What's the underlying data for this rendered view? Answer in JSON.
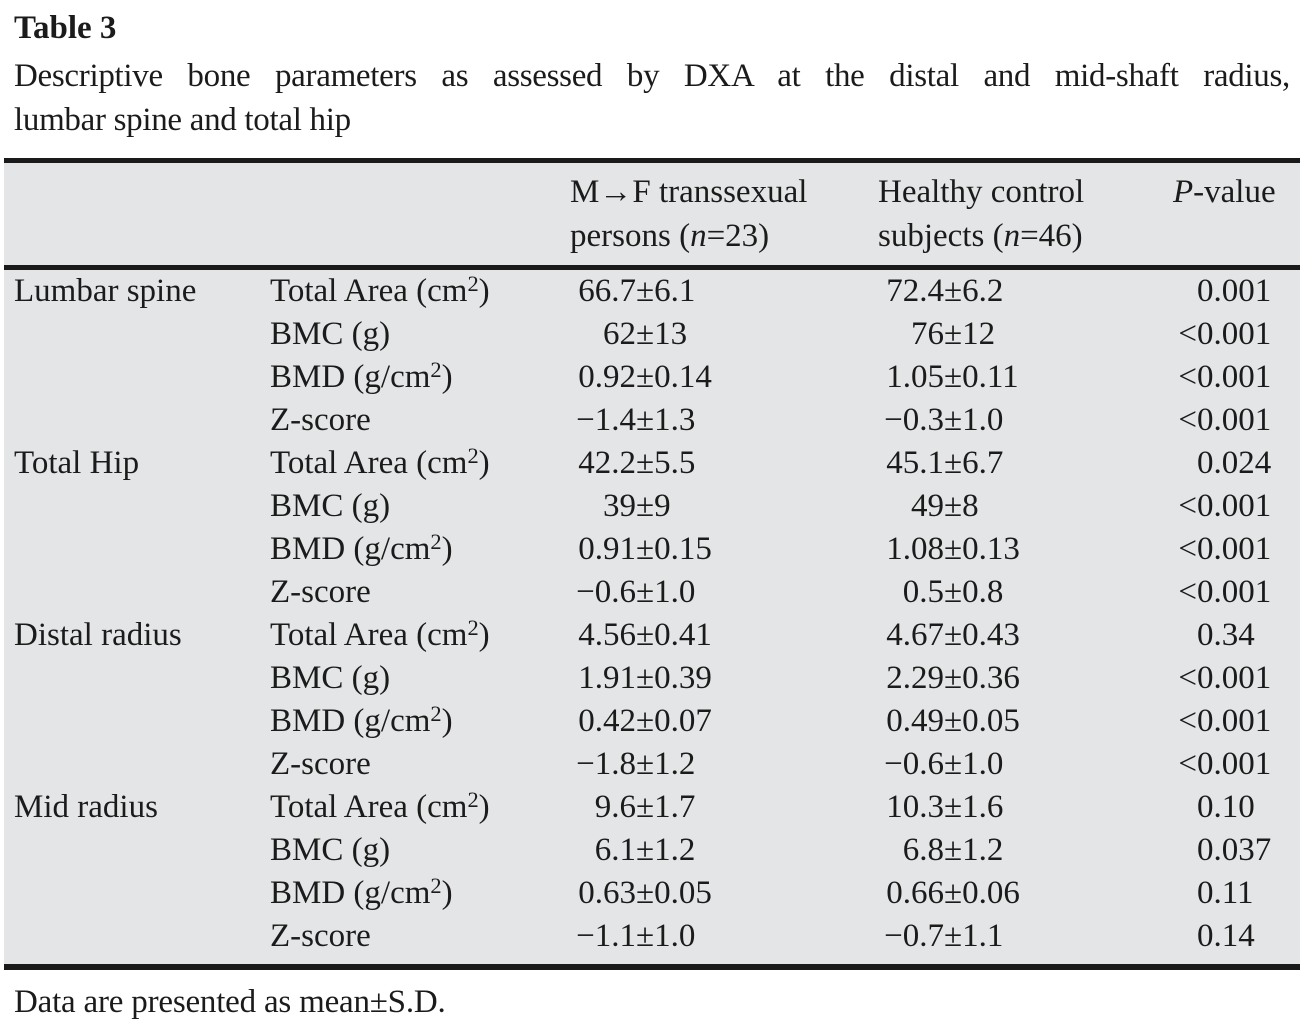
{
  "page": {
    "title": "Table 3",
    "caption_line1": "Descriptive bone parameters as assessed by DXA at the distal and mid-shaft radius,",
    "caption_line2": "lumbar spine and total hip",
    "footnote": "Data are presented as mean±S.D."
  },
  "header": {
    "mf_line1": "M→F transsexual",
    "mf_line2_pre": "persons (",
    "mf_line2_n": "n",
    "mf_line2_post": "=23)",
    "hc_line1": "Healthy control",
    "hc_line2_pre": "subjects (",
    "hc_line2_n": "n",
    "hc_line2_post": "=46)",
    "p_italic": "P",
    "p_rest": "-value"
  },
  "colors": {
    "table_bg": "#e4e5e6",
    "rule": "#1a1a1a",
    "text": "#1b1b1b"
  },
  "rows": [
    {
      "group": "Lumbar spine",
      "param": "Total Area (cm",
      "sup": "2",
      "close": ")",
      "mf": "66.7±6.1",
      "hc": "72.4±6.2",
      "p": "0.001"
    },
    {
      "group": "",
      "param": "BMC (g)",
      "sup": "",
      "close": "",
      "mf": "62±13",
      "hc": "76±12",
      "p": "<0.001"
    },
    {
      "group": "",
      "param": "BMD (g/cm",
      "sup": "2",
      "close": ")",
      "mf": "0.92±0.14",
      "hc": "1.05±0.11",
      "p": "<0.001"
    },
    {
      "group": "",
      "param": "Z-score",
      "sup": "",
      "close": "",
      "mf": "−1.4±1.3",
      "hc": "−0.3±1.0",
      "p": "<0.001"
    },
    {
      "group": "Total Hip",
      "param": "Total Area (cm",
      "sup": "2",
      "close": ")",
      "mf": "42.2±5.5",
      "hc": "45.1±6.7",
      "p": "0.024"
    },
    {
      "group": "",
      "param": "BMC (g)",
      "sup": "",
      "close": "",
      "mf": "39±9",
      "hc": "49±8",
      "p": "<0.001"
    },
    {
      "group": "",
      "param": "BMD (g/cm",
      "sup": "2",
      "close": ")",
      "mf": "0.91±0.15",
      "hc": "1.08±0.13",
      "p": "<0.001"
    },
    {
      "group": "",
      "param": "Z-score",
      "sup": "",
      "close": "",
      "mf": "−0.6±1.0",
      "hc": "0.5±0.8",
      "p": "<0.001"
    },
    {
      "group": "Distal radius",
      "param": "Total Area (cm",
      "sup": "2",
      "close": ")",
      "mf": "4.56±0.41",
      "hc": "4.67±0.43",
      "p": "0.34"
    },
    {
      "group": "",
      "param": "BMC (g)",
      "sup": "",
      "close": "",
      "mf": "1.91±0.39",
      "hc": "2.29±0.36",
      "p": "<0.001"
    },
    {
      "group": "",
      "param": "BMD (g/cm",
      "sup": "2",
      "close": ")",
      "mf": "0.42±0.07",
      "hc": "0.49±0.05",
      "p": "<0.001"
    },
    {
      "group": "",
      "param": "Z-score",
      "sup": "",
      "close": "",
      "mf": "−1.8±1.2",
      "hc": "−0.6±1.0",
      "p": "<0.001"
    },
    {
      "group": "Mid radius",
      "param": "Total Area (cm",
      "sup": "2",
      "close": ")",
      "mf": "9.6±1.7",
      "hc": "10.3±1.6",
      "p": "0.10"
    },
    {
      "group": "",
      "param": "BMC (g)",
      "sup": "",
      "close": "",
      "mf": "6.1±1.2",
      "hc": "6.8±1.2",
      "p": "0.037"
    },
    {
      "group": "",
      "param": "BMD (g/cm",
      "sup": "2",
      "close": ")",
      "mf": "0.63±0.05",
      "hc": "0.66±0.06",
      "p": "0.11"
    },
    {
      "group": "",
      "param": "Z-score",
      "sup": "",
      "close": "",
      "mf": "−1.1±1.0",
      "hc": "−0.7±1.1",
      "p": "0.14"
    }
  ]
}
